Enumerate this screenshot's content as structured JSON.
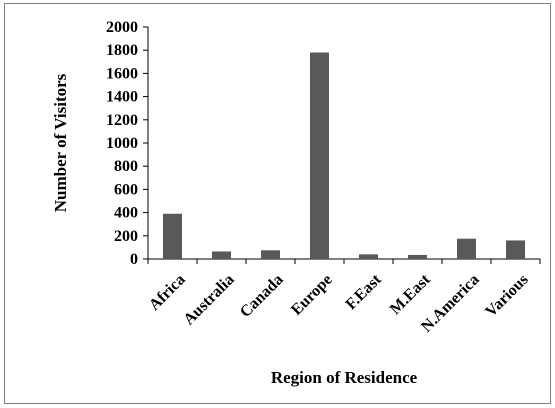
{
  "chart_data": {
    "type": "bar",
    "title": "",
    "xlabel": "Region of Residence",
    "ylabel": "Number of Visitors",
    "categories": [
      "Africa",
      "Australia",
      "Canada",
      "Europe",
      "F.East",
      "M.East",
      "N.America",
      "Various"
    ],
    "values": [
      390,
      65,
      75,
      1780,
      40,
      35,
      175,
      160
    ],
    "ylim": [
      0,
      2000
    ],
    "yticks": [
      "0",
      "200",
      "400",
      "600",
      "800",
      "1000",
      "1200",
      "1400",
      "1600",
      "1800",
      "2000"
    ],
    "grid": false,
    "legend": "none",
    "bar_color": "#595959"
  }
}
